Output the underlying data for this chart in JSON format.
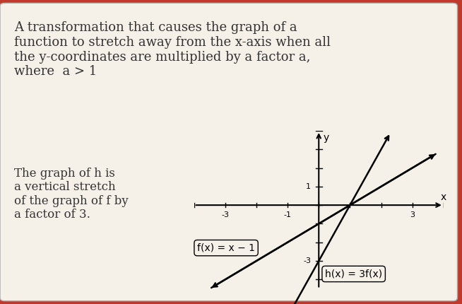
{
  "bg_color": "#c0392b",
  "card_color": "#f5f0e8",
  "title_text": "A transformation that causes the graph of a\nfunction to stretch away from the x-axis when all\nthe y-coordinates are multiplied by a factor a,\nwhere  a > 1",
  "body_text": "The graph of h is\na vertical stretch\nof the graph of f by\na factor of 3.",
  "f_label": "f(x) = x − 1",
  "h_label": "h(x) = 3f(x)",
  "xlim": [
    -4,
    4
  ],
  "ylim": [
    -4.5,
    4
  ],
  "xticks": [
    -3,
    -1,
    3
  ],
  "yticks": [
    1,
    -3
  ],
  "f_color": "#000000",
  "h_color": "#000000",
  "grid_color": "#bbbbbb",
  "axis_color": "#000000",
  "text_color": "#333333",
  "font_size_title": 13,
  "font_size_body": 12,
  "font_size_label": 10
}
